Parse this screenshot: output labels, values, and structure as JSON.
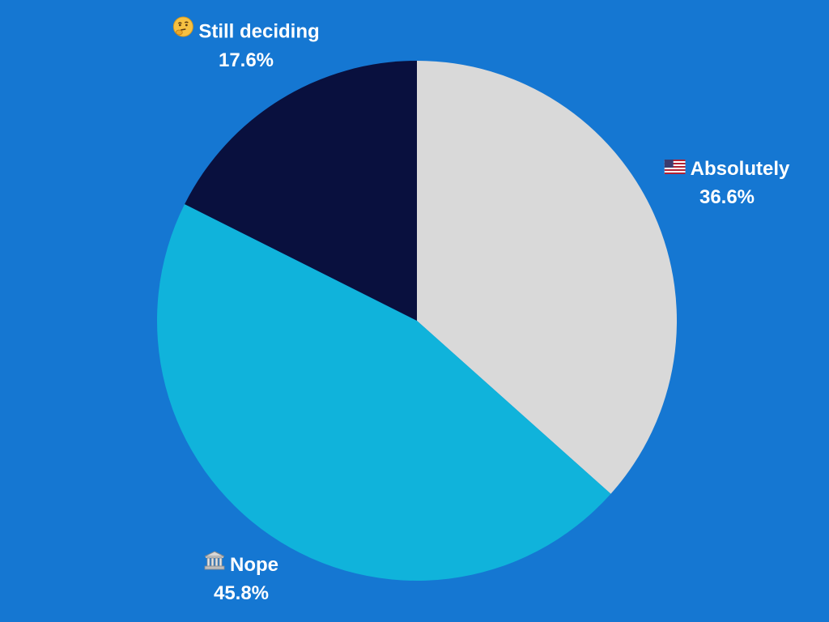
{
  "chart_data": {
    "type": "pie",
    "slices": [
      {
        "label": "Absolutely",
        "value": 36.6,
        "value_label": "36.6%",
        "color": "#d9d9d9",
        "icon": "us-flag-icon"
      },
      {
        "label": "Nope",
        "value": 45.8,
        "value_label": "45.8%",
        "color": "#10b3db",
        "icon": "classical-building-icon"
      },
      {
        "label": "Still deciding",
        "value": 17.6,
        "value_label": "17.6%",
        "color": "#09103e",
        "icon": "thinking-face-icon"
      }
    ],
    "start_angle": "12 o'clock",
    "direction": "clockwise",
    "legend": "none",
    "background": "#1577d2"
  }
}
